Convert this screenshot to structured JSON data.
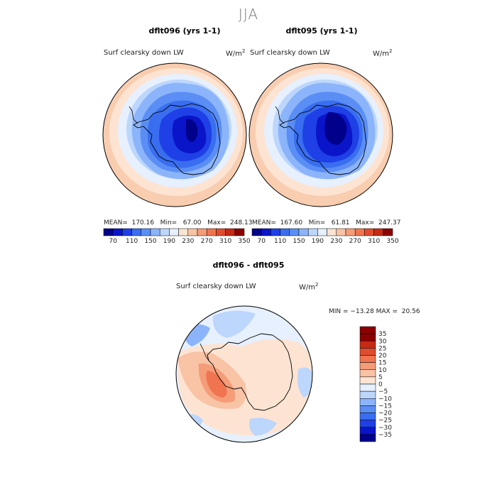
{
  "season": "JJA",
  "colors": {
    "abs_palette": [
      "#00008b",
      "#0a14c8",
      "#1e40e6",
      "#3a6ef0",
      "#5a8ef5",
      "#8cb4fa",
      "#bcd6fc",
      "#e6f0ff",
      "#fde4d2",
      "#f9c3a6",
      "#f59c78",
      "#f07450",
      "#e04c2e",
      "#c42a14",
      "#8b0000"
    ],
    "diff_palette": [
      "#00008b",
      "#0a14c8",
      "#1e40e6",
      "#3a6ef0",
      "#5a8ef5",
      "#8cb4fa",
      "#bcd6fc",
      "#e6f0ff",
      "#fde4d2",
      "#f9c3a6",
      "#f59c78",
      "#f07450",
      "#e04c2e",
      "#c42a14",
      "#8b0000"
    ]
  },
  "chart_data": [
    {
      "type": "heatmap",
      "title": "dflt096 (yrs 1-1)",
      "variable": "Surf clearsky down LW",
      "units": "W/m",
      "units_sup": "2",
      "projection": "south polar stereographic",
      "stats": {
        "mean": "170.16",
        "min": "67.00",
        "max": "248.13"
      },
      "stats_line": "MEAN=  170.16   Min=   67.00   Max=  248.13",
      "colorbar_ticks": [
        "70",
        "110",
        "150",
        "190",
        "230",
        "270",
        "310",
        "350"
      ],
      "colorbar_levels": [
        70,
        90,
        110,
        130,
        150,
        170,
        190,
        210,
        230,
        250,
        270,
        290,
        310,
        330,
        350
      ]
    },
    {
      "type": "heatmap",
      "title": "dflt095 (yrs 1-1)",
      "variable": "Surf clearsky down LW",
      "units": "W/m",
      "units_sup": "2",
      "projection": "south polar stereographic",
      "stats": {
        "mean": "167.60",
        "min": "61.81",
        "max": "247.37"
      },
      "stats_line": "MEAN=  167.60   Min=   61.81   Max=  247.37",
      "colorbar_ticks": [
        "70",
        "110",
        "150",
        "190",
        "230",
        "270",
        "310",
        "350"
      ],
      "colorbar_levels": [
        70,
        90,
        110,
        130,
        150,
        170,
        190,
        210,
        230,
        250,
        270,
        290,
        310,
        330,
        350
      ]
    },
    {
      "type": "heatmap",
      "title": "dflt096 - dflt095",
      "variable": "Surf clearsky down LW",
      "units": "W/m",
      "units_sup": "2",
      "projection": "south polar stereographic",
      "stats": {
        "min": "-13.28",
        "max": "20.56"
      },
      "stats_line": "MIN = −13.28 MAX =  20.56",
      "colorbar_ticks": [
        "35",
        "30",
        "25",
        "20",
        "15",
        "10",
        "5",
        "0",
        "−5",
        "−10",
        "−15",
        "−20",
        "−25",
        "−30",
        "−35"
      ],
      "colorbar_levels": [
        35,
        30,
        25,
        20,
        15,
        10,
        5,
        0,
        -5,
        -10,
        -15,
        -20,
        -25,
        -30,
        -35
      ]
    }
  ]
}
